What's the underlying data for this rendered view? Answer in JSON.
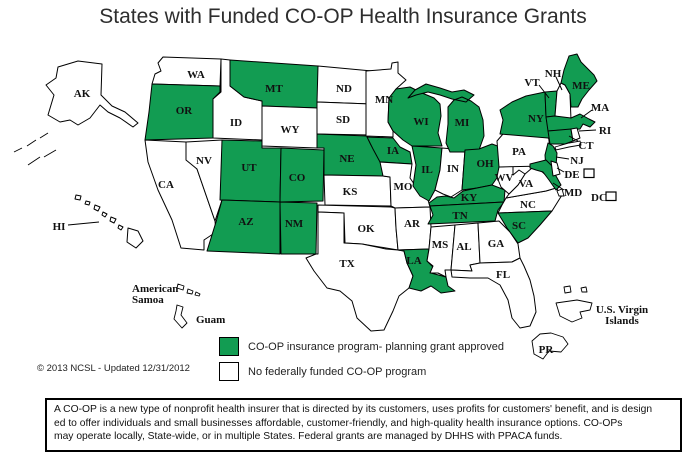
{
  "title": "States with Funded CO-OP Health Insurance Grants",
  "colors": {
    "funded": "#129C52",
    "none": "#FFFFFF",
    "outline": "#000000"
  },
  "legend": {
    "items": [
      {
        "key": "funded",
        "label": "CO-OP insurance program- planning grant approved"
      },
      {
        "key": "none",
        "label": "No federally funded CO-OP program"
      }
    ]
  },
  "copyright": "© 2013 NCSL - Updated 12/31/2012",
  "footnote": {
    "lines": [
      "A CO-OP is a new type of nonprofit health insurer that is directed by its customers, uses profits for customers' benefit, and is design",
      "ed to offer individuals and small businesses affordable, customer-friendly, and high-quality health insurance options.  CO-OPs",
      "may operate locally, State-wide, or in multiple States.  Federal grants are managed by DHHS with PPACA funds."
    ]
  },
  "map": {
    "states": [
      {
        "abbr": "WA",
        "status": "none"
      },
      {
        "abbr": "OR",
        "status": "funded"
      },
      {
        "abbr": "CA",
        "status": "none"
      },
      {
        "abbr": "NV",
        "status": "none"
      },
      {
        "abbr": "ID",
        "status": "none"
      },
      {
        "abbr": "MT",
        "status": "funded"
      },
      {
        "abbr": "WY",
        "status": "none"
      },
      {
        "abbr": "UT",
        "status": "funded"
      },
      {
        "abbr": "CO",
        "status": "funded"
      },
      {
        "abbr": "AZ",
        "status": "funded"
      },
      {
        "abbr": "NM",
        "status": "funded"
      },
      {
        "abbr": "ND",
        "status": "none"
      },
      {
        "abbr": "SD",
        "status": "none"
      },
      {
        "abbr": "NE",
        "status": "funded"
      },
      {
        "abbr": "KS",
        "status": "none"
      },
      {
        "abbr": "OK",
        "status": "none"
      },
      {
        "abbr": "TX",
        "status": "none"
      },
      {
        "abbr": "MN",
        "status": "none"
      },
      {
        "abbr": "IA",
        "status": "funded"
      },
      {
        "abbr": "MO",
        "status": "none"
      },
      {
        "abbr": "AR",
        "status": "none"
      },
      {
        "abbr": "LA",
        "status": "funded"
      },
      {
        "abbr": "WI",
        "status": "funded"
      },
      {
        "abbr": "IL",
        "status": "funded"
      },
      {
        "abbr": "IN",
        "status": "none"
      },
      {
        "abbr": "MI",
        "status": "funded"
      },
      {
        "abbr": "OH",
        "status": "funded"
      },
      {
        "abbr": "KY",
        "status": "funded"
      },
      {
        "abbr": "TN",
        "status": "funded"
      },
      {
        "abbr": "MS",
        "status": "none"
      },
      {
        "abbr": "AL",
        "status": "none"
      },
      {
        "abbr": "GA",
        "status": "none"
      },
      {
        "abbr": "FL",
        "status": "none"
      },
      {
        "abbr": "NC",
        "status": "none"
      },
      {
        "abbr": "SC",
        "status": "funded"
      },
      {
        "abbr": "VA",
        "status": "none"
      },
      {
        "abbr": "WV",
        "status": "none"
      },
      {
        "abbr": "PA",
        "status": "none"
      },
      {
        "abbr": "NY",
        "status": "funded"
      },
      {
        "abbr": "VT",
        "status": "funded"
      },
      {
        "abbr": "NH",
        "status": "none"
      },
      {
        "abbr": "ME",
        "status": "funded"
      },
      {
        "abbr": "MA",
        "status": "funded"
      },
      {
        "abbr": "CT",
        "status": "funded"
      },
      {
        "abbr": "RI",
        "status": "none"
      },
      {
        "abbr": "NJ",
        "status": "funded"
      },
      {
        "abbr": "MD",
        "status": "funded"
      },
      {
        "abbr": "DE",
        "status": "none"
      },
      {
        "abbr": "DC",
        "status": "none"
      },
      {
        "abbr": "AK",
        "status": "none"
      },
      {
        "abbr": "HI",
        "status": "none"
      }
    ],
    "territories": [
      {
        "abbr": "AS",
        "label_lines": [
          "American",
          "Samoa"
        ],
        "status": "none"
      },
      {
        "abbr": "GU",
        "label_lines": [
          "Guam"
        ],
        "status": "none"
      },
      {
        "abbr": "VI",
        "label_lines": [
          "U.S. Virgin",
          "Islands"
        ],
        "status": "none"
      },
      {
        "abbr": "PR",
        "label_lines": [
          "PR"
        ],
        "status": "none"
      }
    ]
  }
}
